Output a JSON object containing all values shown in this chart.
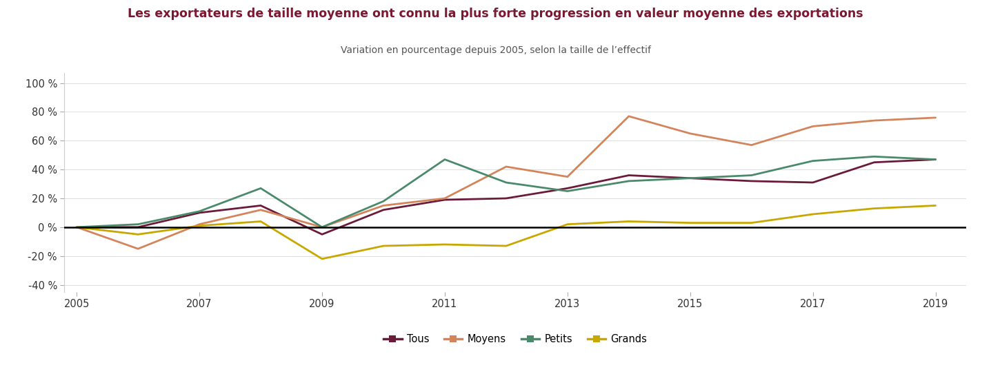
{
  "title": "Les exportateurs de taille moyenne ont connu la plus forte progression en valeur moyenne des exportations",
  "subtitle": "Variation en pourcentage depuis 2005, selon la taille de l’effectif",
  "title_color": "#7B1832",
  "subtitle_color": "#555555",
  "years": [
    2005,
    2006,
    2007,
    2008,
    2009,
    2010,
    2011,
    2012,
    2013,
    2014,
    2015,
    2016,
    2017,
    2018,
    2019
  ],
  "tous": [
    0,
    0,
    10,
    15,
    -5,
    12,
    19,
    20,
    27,
    36,
    34,
    32,
    31,
    45,
    47
  ],
  "moyens": [
    0,
    -15,
    2,
    12,
    0,
    15,
    20,
    42,
    35,
    77,
    65,
    57,
    70,
    74,
    76
  ],
  "petits": [
    0,
    2,
    11,
    27,
    0,
    18,
    47,
    31,
    25,
    32,
    34,
    36,
    46,
    49,
    47
  ],
  "grands": [
    0,
    -5,
    1,
    4,
    -22,
    -13,
    -12,
    -13,
    2,
    4,
    3,
    3,
    9,
    13,
    15
  ],
  "colors": {
    "tous": "#6B1A3A",
    "moyens": "#D4845A",
    "petits": "#4A8A6A",
    "grands": "#C8A800"
  },
  "ylim": [
    -45,
    107
  ],
  "yticks": [
    -40,
    -20,
    0,
    20,
    40,
    60,
    80,
    100
  ],
  "xticks": [
    2005,
    2007,
    2009,
    2011,
    2013,
    2015,
    2017,
    2019
  ],
  "legend_labels": [
    "Tous",
    "Moyens",
    "Petits",
    "Grands"
  ],
  "legend_keys": [
    "tous",
    "moyens",
    "petits",
    "grands"
  ],
  "linewidth": 2.0,
  "figsize": [
    14.37,
    5.3
  ],
  "dpi": 100,
  "background_color": "#FFFFFF"
}
